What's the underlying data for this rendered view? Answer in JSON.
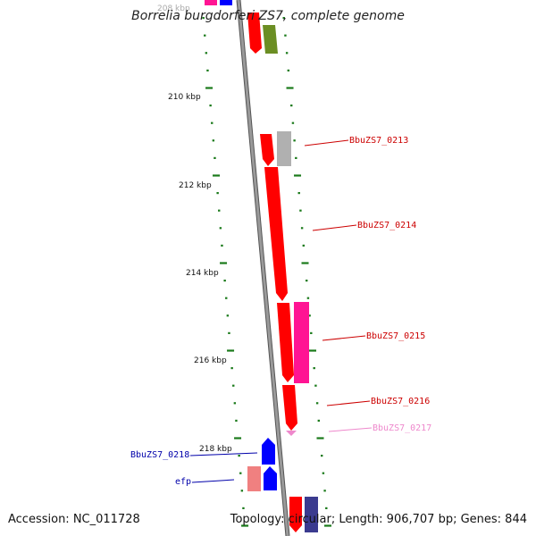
{
  "title": "Borrelia burgdorferi ZS7, complete genome",
  "accession_label": "Accession: NC_011728",
  "summary_label": "Topology: circular; Length: 906,707 bp; Genes: 844",
  "scale_labels": [
    "208 kbp",
    "210 kbp",
    "212 kbp",
    "214 kbp",
    "216 kbp",
    "218 kbp"
  ],
  "gene_labels": [
    {
      "text": "BbuZS7_0213",
      "color": "#cc0000"
    },
    {
      "text": "BbuZS7_0214",
      "color": "#cc0000"
    },
    {
      "text": "BbuZS7_0215",
      "color": "#cc0000"
    },
    {
      "text": "BbuZS7_0216",
      "color": "#cc0000"
    },
    {
      "text": "BbuZS7_0217",
      "color": "#ee88cc"
    },
    {
      "text": "BbuZS7_0218",
      "color": "#0000aa"
    },
    {
      "text": "efp",
      "color": "#0000aa"
    }
  ],
  "colors": {
    "backbone": "#888888",
    "tick": "#1a7a1a",
    "gene_red": "#ff0000",
    "gene_pink": "#ff1493",
    "gene_blue": "#0000ff",
    "gene_gray": "#b0b0b0",
    "gene_olive": "#6b8e23",
    "gene_lightred": "#f08080",
    "gene_navy": "#3b3b8f"
  }
}
